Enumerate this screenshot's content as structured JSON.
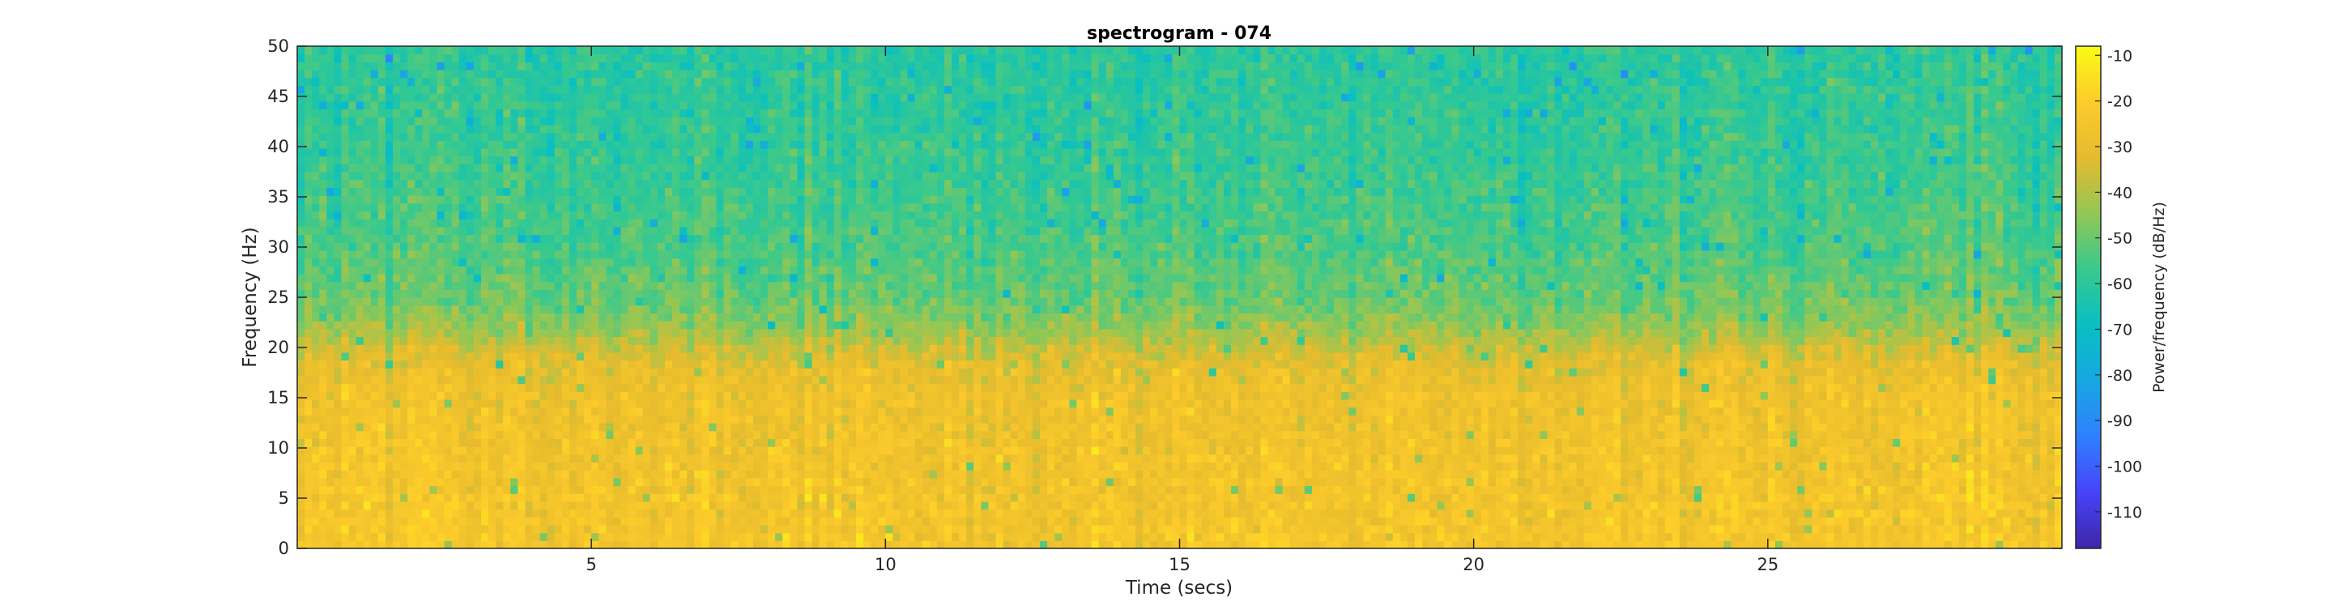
{
  "chart_data": {
    "type": "heatmap",
    "title": "spectrogram - 074",
    "xlabel": "Time (secs)",
    "ylabel": "Frequency (Hz)",
    "xlim": [
      0,
      30
    ],
    "ylim": [
      0,
      50
    ],
    "x_ticks": [
      5,
      10,
      15,
      20,
      25
    ],
    "y_ticks": [
      0,
      5,
      10,
      15,
      20,
      25,
      30,
      35,
      40,
      45,
      50
    ],
    "colorbar": {
      "label": "Power/frequency (dB/Hz)",
      "limits": [
        -118,
        -8
      ],
      "ticks": [
        -10,
        -20,
        -30,
        -40,
        -50,
        -60,
        -70,
        -80,
        -90,
        -100,
        -110
      ],
      "colormap": "parula",
      "colormap_stops": [
        "#3e26a8",
        "#4743f9",
        "#2f80fe",
        "#17a7e2",
        "#08bfc2",
        "#38c98e",
        "#92c755",
        "#e5bb2e",
        "#fdcc2b",
        "#f9fb15"
      ]
    },
    "power_profile_db": {
      "frequencies_hz": [
        0,
        5,
        10,
        15,
        18,
        20,
        22,
        25,
        30,
        35,
        40,
        45,
        50
      ],
      "typical_db": [
        -24,
        -25,
        -26,
        -27,
        -30,
        -36,
        -44,
        -50,
        -54,
        -56,
        -58,
        -59,
        -60
      ]
    },
    "grid": false,
    "colors": {
      "axis": "#262626",
      "background": "#ffffff"
    }
  }
}
